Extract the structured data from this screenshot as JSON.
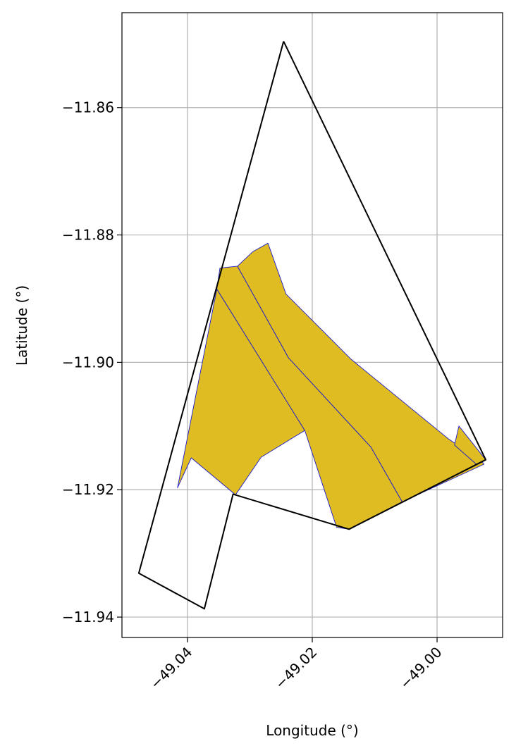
{
  "chart_data": {
    "type": "map",
    "xlabel": "Longitude (°)",
    "ylabel": "Latitude (°)",
    "xlim": [
      -49.0505,
      -48.9895
    ],
    "ylim": [
      -11.9432,
      -11.8451
    ],
    "x_ticks": [
      {
        "value": -49.04,
        "label": "−49.04"
      },
      {
        "value": -49.02,
        "label": "−49.02"
      },
      {
        "value": -49.0,
        "label": "−49.00"
      }
    ],
    "y_ticks": [
      {
        "value": -11.86,
        "label": "−11.86"
      },
      {
        "value": -11.88,
        "label": "−11.88"
      },
      {
        "value": -11.9,
        "label": "−11.90"
      },
      {
        "value": -11.92,
        "label": "−11.92"
      },
      {
        "value": -11.94,
        "label": "−11.94"
      }
    ],
    "grid": true,
    "colors": {
      "fill": "#dfbd22",
      "parcel_edge": "#1a1acc",
      "boundary": "#000000",
      "grid": "#b0b0b0"
    },
    "boundary": [
      [
        -49.0246,
        -11.8496
      ],
      [
        -48.9922,
        -11.9153
      ],
      [
        -49.0141,
        -11.9262
      ],
      [
        -49.0327,
        -11.9207
      ],
      [
        -49.0373,
        -11.9387
      ],
      [
        -49.0478,
        -11.9331
      ],
      [
        -49.0246,
        -11.8496
      ]
    ],
    "parcels": [
      [
        [
          -49.0353,
          -11.8885
        ],
        [
          -49.0416,
          -11.9197
        ],
        [
          -49.0394,
          -11.915
        ],
        [
          -49.0323,
          -11.9208
        ],
        [
          -49.0282,
          -11.9149
        ],
        [
          -49.0212,
          -11.9107
        ],
        [
          -49.0353,
          -11.8885
        ]
      ],
      [
        [
          -49.0353,
          -11.8885
        ],
        [
          -49.0348,
          -11.8852
        ],
        [
          -49.032,
          -11.8849
        ],
        [
          -49.0238,
          -11.8993
        ],
        [
          -49.0106,
          -11.9133
        ],
        [
          -49.0056,
          -11.9219
        ],
        [
          -49.0141,
          -11.9262
        ],
        [
          -49.0161,
          -11.9259
        ],
        [
          -49.0212,
          -11.9107
        ],
        [
          -49.0353,
          -11.8885
        ]
      ],
      [
        [
          -49.032,
          -11.8849
        ],
        [
          -49.0295,
          -11.8826
        ],
        [
          -49.0271,
          -11.8813
        ],
        [
          -49.0242,
          -11.8893
        ],
        [
          -49.0138,
          -11.8995
        ],
        [
          -48.9982,
          -11.912
        ],
        [
          -48.9926,
          -11.9158
        ],
        [
          -48.9925,
          -11.916
        ],
        [
          -49.0056,
          -11.9219
        ],
        [
          -49.0106,
          -11.9133
        ],
        [
          -49.0238,
          -11.8993
        ],
        [
          -49.032,
          -11.8849
        ]
      ],
      [
        [
          -48.9965,
          -11.91
        ],
        [
          -48.9922,
          -11.9153
        ],
        [
          -48.9937,
          -11.916
        ],
        [
          -48.9972,
          -11.913
        ],
        [
          -48.9965,
          -11.91
        ]
      ]
    ]
  }
}
